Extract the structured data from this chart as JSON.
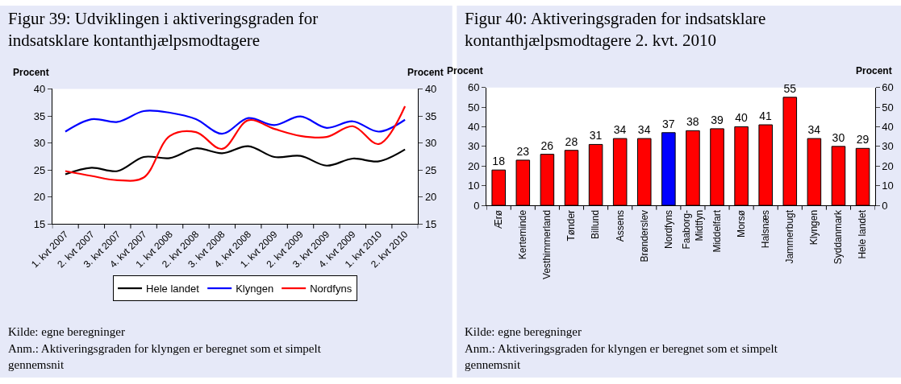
{
  "chart_data": [
    {
      "type": "line",
      "title": "Figur 39: Udviklingen i aktiveringsgraden for\nindsatsklare kontanthjælpsmodtagere",
      "ylabel": "Procent",
      "y2label": "Procent",
      "categories": [
        "1. kvt 2007",
        "2. kvt 2007",
        "3. kvt 2007",
        "4. kvt 2007",
        "1. kvt 2008",
        "2. kvt 2008",
        "3. kvt 2008",
        "4. kvt 2008",
        "1. kvt 2009",
        "2. kvt 2009",
        "3. kvt 2009",
        "4. kvt 2009",
        "1. kvt 2010",
        "2. kvt 2010"
      ],
      "series": [
        {
          "name": "Hele landet",
          "color": "#000000",
          "values": [
            24.2,
            25.4,
            24.8,
            27.4,
            27.2,
            29.0,
            28.1,
            29.4,
            27.4,
            27.6,
            25.8,
            27.1,
            26.6,
            28.8
          ]
        },
        {
          "name": "Klyngen",
          "color": "#0000ff",
          "values": [
            32.1,
            34.4,
            33.9,
            35.9,
            35.6,
            34.4,
            31.7,
            34.6,
            33.3,
            34.9,
            32.8,
            34.0,
            32.1,
            34.3
          ]
        },
        {
          "name": "Nordfyns",
          "color": "#ff0000",
          "values": [
            24.8,
            23.9,
            23.1,
            23.6,
            31.3,
            32.0,
            28.9,
            34.2,
            32.6,
            31.3,
            31.1,
            33.1,
            29.8,
            36.8
          ]
        }
      ],
      "ylim": [
        15,
        40
      ],
      "yticks": [
        15,
        20,
        25,
        30,
        35,
        40
      ],
      "y2lim": [
        15,
        40
      ],
      "y2ticks": [
        15,
        20,
        25,
        30,
        35,
        40
      ],
      "grid": false,
      "legend": "bottom",
      "marker": "none",
      "line_style": "solid",
      "annotations": [
        "Kilde: egne beregninger",
        "Anm.: Aktiveringsgraden for klyngen er beregnet som et simpelt gennemsnit"
      ]
    },
    {
      "type": "bar",
      "title": "Figur 40: Aktiveringsgraden for indsatsklare\nkontanthjælpsmodtagere 2. kvt. 2010",
      "ylabel": "Procent",
      "y2label": "Procent",
      "categories": [
        "Ærø",
        "Kerteminde",
        "Vesthimmerland",
        "Tønder",
        "Billund",
        "Assens",
        "Brønderslev",
        "Nordfyns",
        "Faaborg-\nMidtfyn",
        "Middelfart",
        "Morsø",
        "Halsnæs",
        "Jammerbugt",
        "Klyngen",
        "Syddanmark",
        "Hele landet"
      ],
      "values": [
        18,
        23,
        26,
        28,
        31,
        34,
        34,
        37,
        38,
        39,
        40,
        41,
        55,
        34,
        30,
        29
      ],
      "colors": [
        "#ff0000",
        "#ff0000",
        "#ff0000",
        "#ff0000",
        "#ff0000",
        "#ff0000",
        "#ff0000",
        "#0000ff",
        "#ff0000",
        "#ff0000",
        "#ff0000",
        "#ff0000",
        "#ff0000",
        "#ff0000",
        "#ff0000",
        "#ff0000"
      ],
      "ylim": [
        0,
        60
      ],
      "yticks": [
        0,
        10,
        20,
        30,
        40,
        50,
        60
      ],
      "y2lim": [
        0,
        60
      ],
      "y2ticks": [
        0,
        10,
        20,
        30,
        40,
        50,
        60
      ],
      "grid": false,
      "legend": false,
      "data_labels": true,
      "annotations": [
        "Kilde: egne beregninger",
        "Anm.: Aktiveringsgraden for klyngen er beregnet som et simpelt gennemsnit"
      ]
    }
  ]
}
